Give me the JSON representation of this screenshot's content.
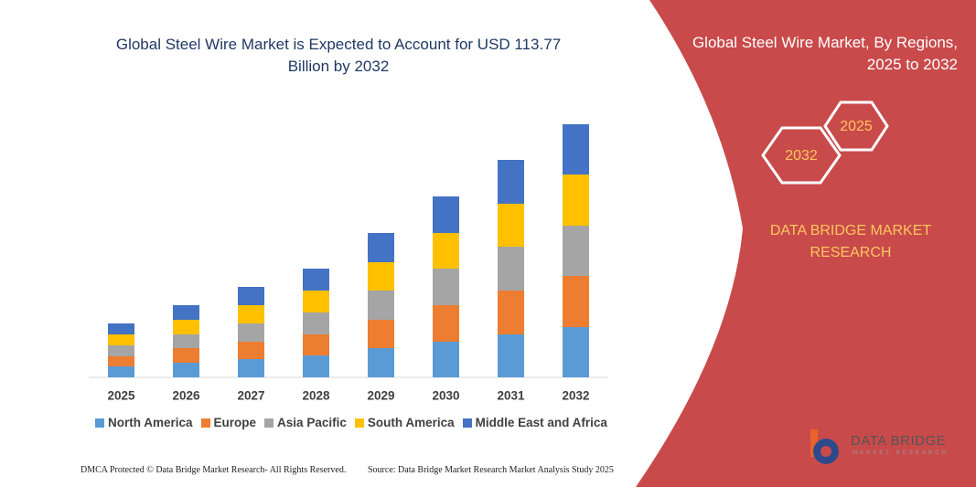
{
  "chart_data": {
    "type": "bar",
    "stacked": true,
    "title": "Global Steel Wire Market is Expected to Account for USD 113.77 Billion by 2032",
    "categories": [
      "2025",
      "2026",
      "2027",
      "2028",
      "2029",
      "2030",
      "2031",
      "2032"
    ],
    "series": [
      {
        "name": "North America",
        "color": "#5b9bd5",
        "values": [
          12,
          16,
          20,
          24,
          32,
          39,
          47,
          55
        ]
      },
      {
        "name": "Europe",
        "color": "#ed7d31",
        "values": [
          11,
          16,
          19,
          23,
          31,
          40,
          48,
          56
        ]
      },
      {
        "name": "Asia Pacific",
        "color": "#a5a5a5",
        "values": [
          12,
          15,
          20,
          24,
          32,
          40,
          48,
          55
        ]
      },
      {
        "name": "South America",
        "color": "#ffc000",
        "values": [
          12,
          16,
          20,
          24,
          31,
          39,
          47,
          56
        ]
      },
      {
        "name": "Middle East and Africa",
        "color": "#4472c4",
        "values": [
          12,
          16,
          20,
          24,
          32,
          40,
          48,
          55
        ]
      }
    ],
    "ylim": [
      0,
      277
    ]
  },
  "panel": {
    "title": "Global Steel Wire Market, By Regions, 2025 to 2032",
    "hexagons": [
      "2032",
      "2025"
    ],
    "brand": "DATA BRIDGE MARKET RESEARCH",
    "logo": "DATA BRIDGE",
    "logo_sub": "MARKET RESEARCH"
  },
  "footer": {
    "left": "DMCA Protected © Data Bridge Market Research- All Rights Reserved.",
    "right": "Source: Data Bridge Market Research  Market Analysis Study 2025"
  }
}
